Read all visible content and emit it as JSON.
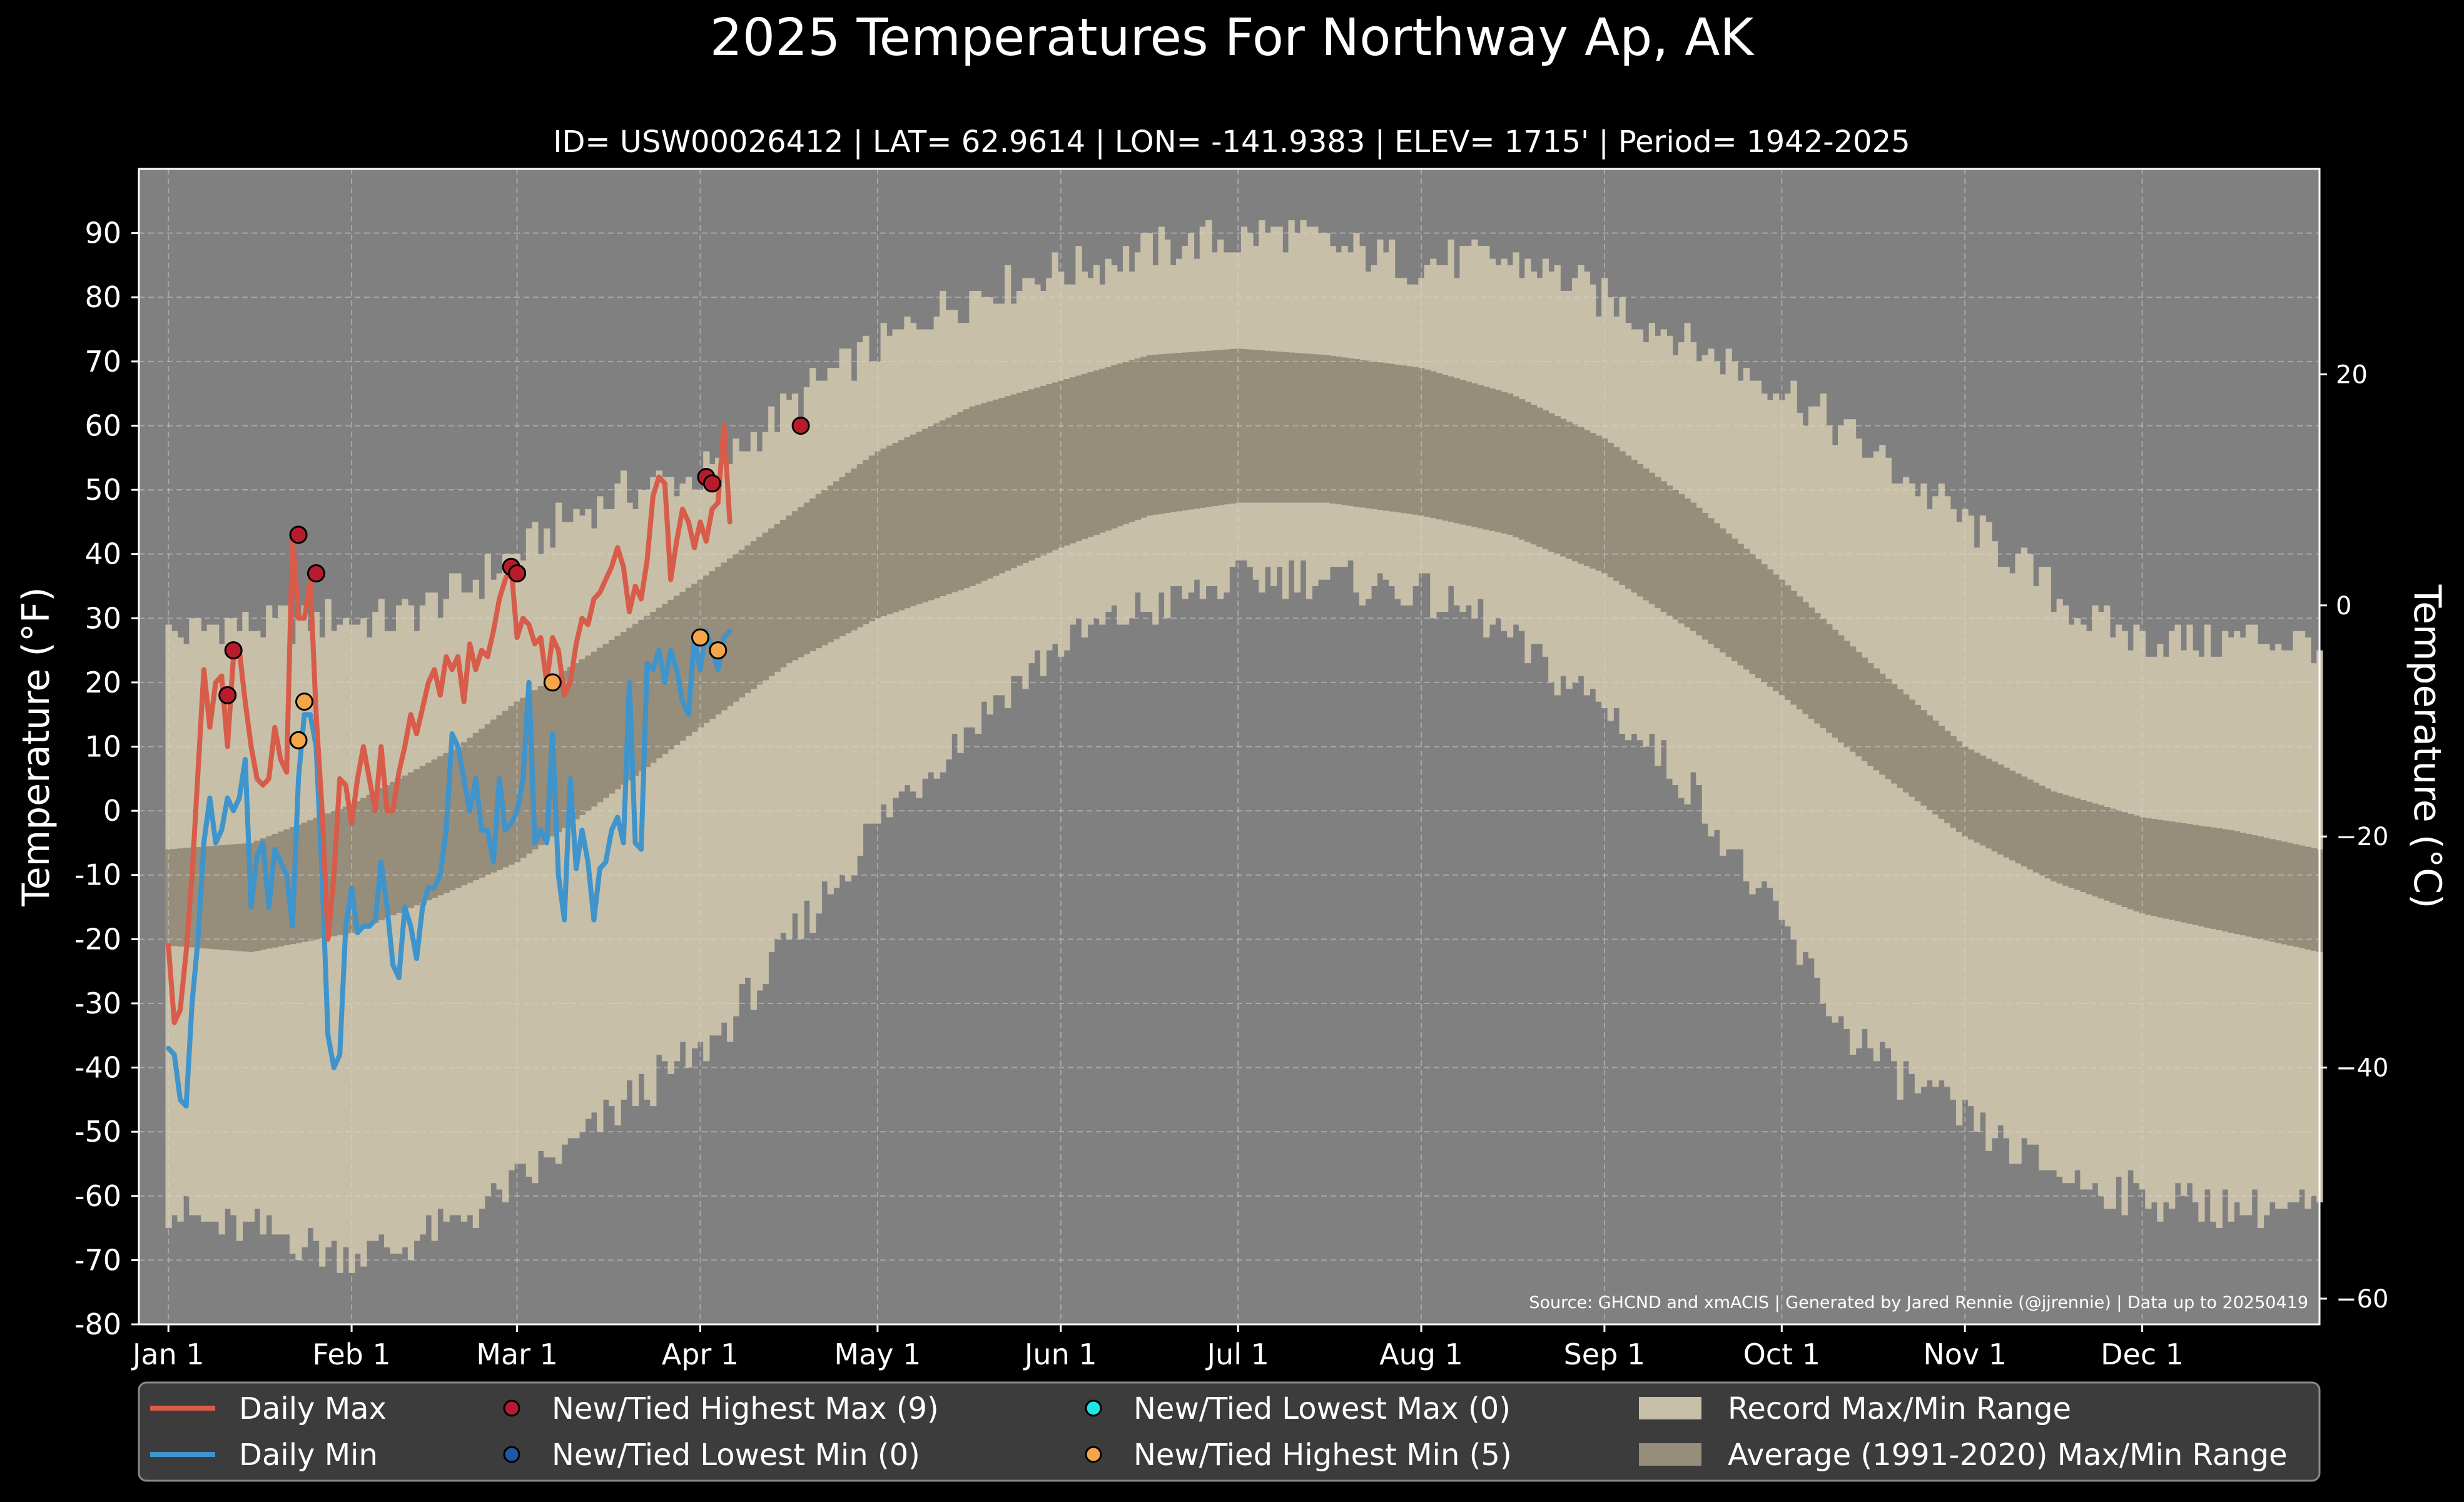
{
  "title": "2025 Temperatures For Northway Ap, AK",
  "subtitle": "ID= USW00026412 | LAT= 62.9614 | LON= -141.9383 | ELEV= 1715' | Period= 1942-2025",
  "source": "Source: GHCND and xmACIS | Generated by Jared Rennie (@jjrennie) | Data up to 20250419",
  "colors": {
    "background": "#000000",
    "plot_bg": "#808080",
    "record_range": "#c8bfa8",
    "normal_range": "#968d7b",
    "daily_max": "#d85c4a",
    "daily_min": "#3f94cc",
    "new_high_max": "#b81c2c",
    "new_low_min": "#1f57a8",
    "new_low_max": "#1ee6e6",
    "new_high_min": "#f5a54a",
    "legend_bg": "#3c3c3c",
    "grid": "#d8d8d8"
  },
  "chart_data": {
    "type": "line",
    "title": "2025 Temperatures For Northway Ap, AK",
    "xlabel": "",
    "ylabel": "Temperature ($^\\circ$F)",
    "y2label": "Temperature ($^\\circ$C)",
    "ylim": [
      -80,
      100
    ],
    "xlim": [
      -4,
      365
    ],
    "grid": true,
    "legend_placement": "bottom",
    "x_ticks": [
      {
        "day": 1,
        "label": "Jan 1"
      },
      {
        "day": 32,
        "label": "Feb 1"
      },
      {
        "day": 60,
        "label": "Mar 1"
      },
      {
        "day": 91,
        "label": "Apr 1"
      },
      {
        "day": 121,
        "label": "May 1"
      },
      {
        "day": 152,
        "label": "Jun 1"
      },
      {
        "day": 182,
        "label": "Jul 1"
      },
      {
        "day": 213,
        "label": "Aug 1"
      },
      {
        "day": 244,
        "label": "Sep 1"
      },
      {
        "day": 274,
        "label": "Oct 1"
      },
      {
        "day": 305,
        "label": "Nov 1"
      },
      {
        "day": 335,
        "label": "Dec 1"
      }
    ],
    "y_ticks": [
      {
        "v": 90,
        "label": "90"
      },
      {
        "v": 80,
        "label": "80"
      },
      {
        "v": 70,
        "label": "70"
      },
      {
        "v": 60,
        "label": "60"
      },
      {
        "v": 50,
        "label": "50"
      },
      {
        "v": 40,
        "label": "40"
      },
      {
        "v": 30,
        "label": "30"
      },
      {
        "v": 20,
        "label": "20"
      },
      {
        "v": 10,
        "label": "10"
      },
      {
        "v": 0,
        "label": "0"
      },
      {
        "v": -10,
        "label": "-10"
      },
      {
        "v": -20,
        "label": "-20"
      },
      {
        "v": -30,
        "label": "-30"
      },
      {
        "v": -40,
        "label": "-40"
      },
      {
        "v": -50,
        "label": "-50"
      },
      {
        "v": -60,
        "label": "-60"
      },
      {
        "v": -70,
        "label": "-70"
      },
      {
        "v": -80,
        "label": "-80"
      }
    ],
    "y2_ticks": [
      {
        "c": 20,
        "label": "20"
      },
      {
        "c": 0,
        "label": "0"
      },
      {
        "c": -20,
        "label": "−20"
      },
      {
        "c": -40,
        "label": "−40"
      },
      {
        "c": -60,
        "label": "−60"
      }
    ],
    "record_max_anchors": [
      [
        1,
        27
      ],
      [
        10,
        29
      ],
      [
        20,
        29
      ],
      [
        30,
        30
      ],
      [
        40,
        30
      ],
      [
        50,
        34
      ],
      [
        60,
        40
      ],
      [
        70,
        46
      ],
      [
        80,
        50
      ],
      [
        91,
        52
      ],
      [
        100,
        58
      ],
      [
        110,
        66
      ],
      [
        121,
        72
      ],
      [
        131,
        78
      ],
      [
        142,
        82
      ],
      [
        152,
        84
      ],
      [
        162,
        86
      ],
      [
        172,
        88
      ],
      [
        182,
        89
      ],
      [
        190,
        90
      ],
      [
        200,
        87
      ],
      [
        213,
        85
      ],
      [
        223,
        86
      ],
      [
        232,
        85
      ],
      [
        244,
        80
      ],
      [
        252,
        76
      ],
      [
        260,
        72
      ],
      [
        274,
        66
      ],
      [
        283,
        60
      ],
      [
        292,
        54
      ],
      [
        305,
        45
      ],
      [
        315,
        38
      ],
      [
        325,
        30
      ],
      [
        335,
        27
      ],
      [
        345,
        26
      ],
      [
        355,
        27
      ],
      [
        365,
        26
      ]
    ],
    "record_min_anchors": [
      [
        1,
        -62
      ],
      [
        10,
        -65
      ],
      [
        20,
        -66
      ],
      [
        30,
        -69
      ],
      [
        40,
        -68
      ],
      [
        50,
        -64
      ],
      [
        60,
        -58
      ],
      [
        70,
        -52
      ],
      [
        80,
        -44
      ],
      [
        91,
        -38
      ],
      [
        100,
        -28
      ],
      [
        110,
        -16
      ],
      [
        121,
        -2
      ],
      [
        131,
        8
      ],
      [
        142,
        18
      ],
      [
        152,
        26
      ],
      [
        162,
        30
      ],
      [
        172,
        33
      ],
      [
        182,
        36
      ],
      [
        192,
        37
      ],
      [
        200,
        36
      ],
      [
        213,
        34
      ],
      [
        223,
        30
      ],
      [
        232,
        24
      ],
      [
        244,
        16
      ],
      [
        252,
        10
      ],
      [
        260,
        2
      ],
      [
        268,
        -10
      ],
      [
        274,
        -18
      ],
      [
        283,
        -32
      ],
      [
        292,
        -40
      ],
      [
        305,
        -48
      ],
      [
        315,
        -54
      ],
      [
        325,
        -58
      ],
      [
        335,
        -60
      ],
      [
        345,
        -61
      ],
      [
        355,
        -62
      ],
      [
        365,
        -62
      ]
    ],
    "normal_max_anchors": [
      [
        1,
        -6
      ],
      [
        15,
        -5
      ],
      [
        32,
        1
      ],
      [
        50,
        10
      ],
      [
        60,
        17
      ],
      [
        75,
        26
      ],
      [
        91,
        36
      ],
      [
        106,
        46
      ],
      [
        121,
        56
      ],
      [
        137,
        63
      ],
      [
        152,
        67
      ],
      [
        167,
        71
      ],
      [
        182,
        72
      ],
      [
        197,
        71
      ],
      [
        213,
        69
      ],
      [
        228,
        65
      ],
      [
        244,
        58
      ],
      [
        259,
        48
      ],
      [
        274,
        36
      ],
      [
        289,
        23
      ],
      [
        305,
        10
      ],
      [
        320,
        3
      ],
      [
        335,
        -1
      ],
      [
        350,
        -3
      ],
      [
        365,
        -6
      ]
    ],
    "normal_min_anchors": [
      [
        1,
        -21
      ],
      [
        15,
        -22
      ],
      [
        32,
        -19
      ],
      [
        50,
        -12
      ],
      [
        60,
        -8
      ],
      [
        75,
        2
      ],
      [
        91,
        13
      ],
      [
        106,
        23
      ],
      [
        121,
        30
      ],
      [
        137,
        35
      ],
      [
        152,
        41
      ],
      [
        167,
        46
      ],
      [
        182,
        48
      ],
      [
        197,
        48
      ],
      [
        213,
        46
      ],
      [
        228,
        43
      ],
      [
        244,
        37
      ],
      [
        259,
        28
      ],
      [
        274,
        18
      ],
      [
        289,
        7
      ],
      [
        305,
        -4
      ],
      [
        320,
        -11
      ],
      [
        335,
        -16
      ],
      [
        350,
        -19
      ],
      [
        365,
        -22
      ]
    ],
    "series": [
      {
        "name": "Daily Max",
        "values": [
          -21,
          -33,
          -31,
          -22,
          -10,
          6,
          22,
          13,
          20,
          21,
          10,
          24,
          25,
          17,
          10,
          5,
          4,
          5,
          13,
          8,
          6,
          43,
          30,
          30,
          36,
          15,
          0,
          -20,
          -10,
          5,
          4,
          -2,
          5,
          10,
          5,
          0,
          10,
          0,
          0,
          6,
          10,
          15,
          12,
          16,
          20,
          22,
          18,
          24,
          22,
          24,
          17,
          26,
          22,
          25,
          24,
          28,
          33,
          36,
          38,
          27,
          30,
          29,
          26,
          27,
          20,
          27,
          25,
          18,
          20,
          26,
          30,
          29,
          33,
          34,
          36,
          38,
          41,
          38,
          31,
          35,
          33,
          39,
          49,
          52,
          51,
          36,
          42,
          47,
          45,
          41,
          45,
          42,
          47,
          48,
          60,
          45
        ]
      },
      {
        "name": "Daily Min",
        "values": [
          -37,
          -38,
          -45,
          -46,
          -30,
          -20,
          -5,
          2,
          -5,
          -3,
          2,
          0,
          2,
          8,
          -15,
          -7,
          -5,
          -15,
          -6,
          -8,
          -10,
          -18,
          5,
          15,
          15,
          10,
          -10,
          -35,
          -40,
          -38,
          -18,
          -12,
          -19,
          -18,
          -18,
          -17,
          -8,
          -15,
          -24,
          -26,
          -15,
          -18,
          -23,
          -15,
          -12,
          -12,
          -10,
          -3,
          12,
          10,
          5,
          0,
          5,
          -3,
          -3,
          -8,
          5,
          -3,
          -2,
          0,
          5,
          20,
          -5,
          -3,
          -5,
          12,
          -10,
          -17,
          5,
          -9,
          -3,
          -8,
          -17,
          -9,
          -8,
          -3,
          -1,
          -5,
          20,
          -5,
          -6,
          23,
          22,
          25,
          20,
          25,
          22,
          17,
          15,
          27,
          22,
          28,
          25,
          22,
          27,
          28
        ]
      },
      {
        "name": "New/Tied Highest Max (9)",
        "points": [
          [
            11,
            18
          ],
          [
            12,
            25
          ],
          [
            23,
            43
          ],
          [
            26,
            37
          ],
          [
            59,
            38
          ],
          [
            60,
            37
          ],
          [
            92,
            52
          ],
          [
            93,
            51
          ],
          [
            108,
            60
          ]
        ]
      },
      {
        "name": "New/Tied Lowest Min (0)",
        "points": []
      },
      {
        "name": "New/Tied Lowest Max (0)",
        "points": []
      },
      {
        "name": "New/Tied Highest Min (5)",
        "points": [
          [
            23,
            11
          ],
          [
            24,
            17
          ],
          [
            66,
            20
          ],
          [
            91,
            27
          ],
          [
            94,
            25
          ]
        ]
      }
    ]
  },
  "legend": [
    {
      "label": "Daily Max",
      "kind": "line",
      "color_key": "daily_max"
    },
    {
      "label": "Daily Min",
      "kind": "line",
      "color_key": "daily_min"
    },
    {
      "label": "New/Tied Highest Max (9)",
      "kind": "dot",
      "color_key": "new_high_max"
    },
    {
      "label": "New/Tied Lowest Min (0)",
      "kind": "dot",
      "color_key": "new_low_min"
    },
    {
      "label": "New/Tied Lowest Max (0)",
      "kind": "dot",
      "color_key": "new_low_max"
    },
    {
      "label": "New/Tied Highest Min (5)",
      "kind": "dot",
      "color_key": "new_high_min"
    },
    {
      "label": "Record Max/Min Range",
      "kind": "patch",
      "color_key": "record_range"
    },
    {
      "label": "Average (1991-2020) Max/Min Range",
      "kind": "patch",
      "color_key": "normal_range"
    }
  ]
}
